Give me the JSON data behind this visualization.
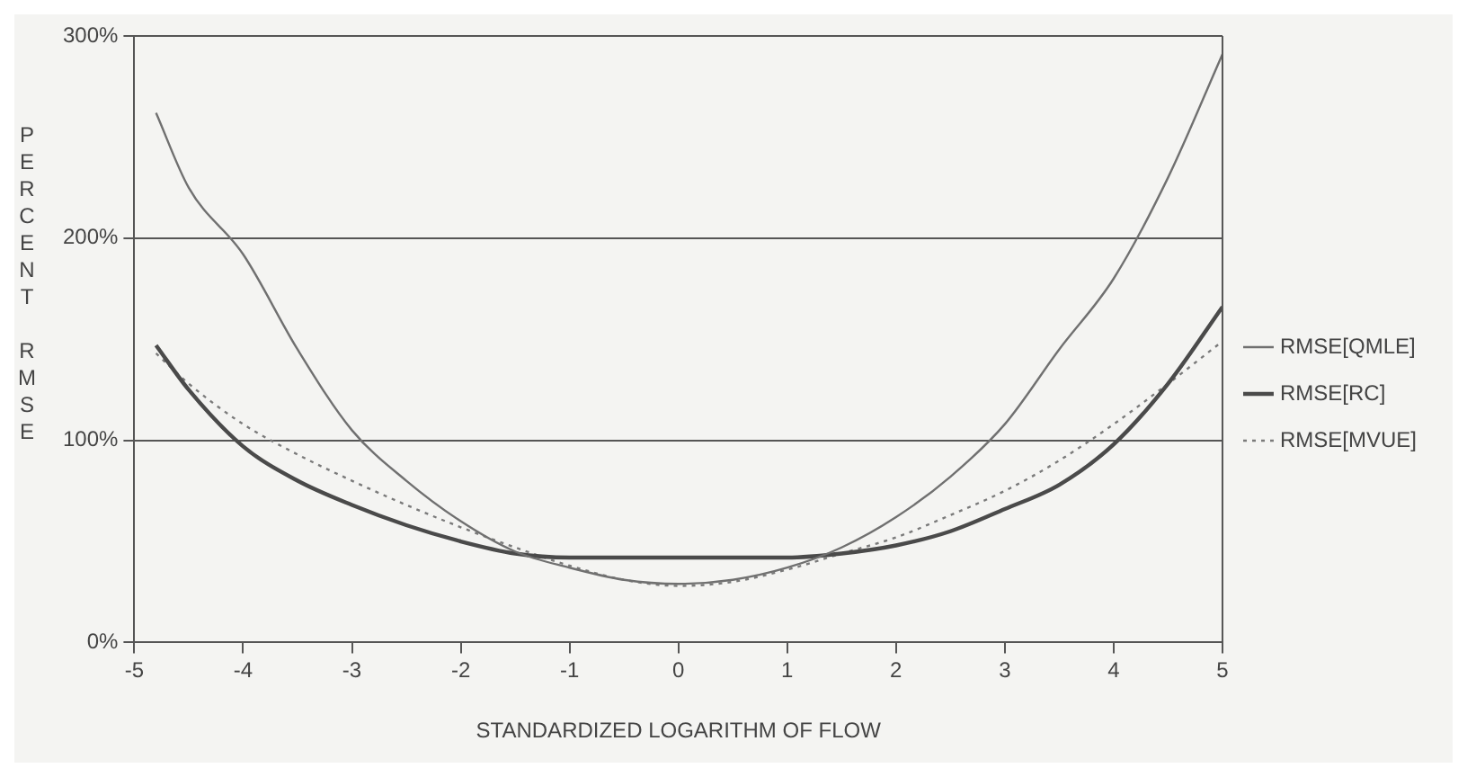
{
  "chart_data": {
    "type": "line",
    "xlabel": "STANDARDIZED LOGARITHM OF FLOW",
    "ylabel": "PERCENT RMSE",
    "x": [
      -4.8,
      -4.5,
      -4,
      -3.5,
      -3,
      -2.5,
      -2,
      -1.5,
      -1,
      -0.5,
      0,
      0.5,
      1,
      1.5,
      2,
      2.5,
      3,
      3.5,
      4,
      4.5,
      5
    ],
    "series": [
      {
        "name": "RMSE[QMLE]",
        "color": "#707070",
        "line_style": "solid",
        "values": [
          262,
          225,
          192,
          145,
          105,
          80,
          60,
          45,
          37,
          31,
          29,
          31,
          37,
          47,
          62,
          82,
          108,
          145,
          180,
          230,
          291
        ]
      },
      {
        "name": "RMSE[RC]",
        "color": "#4a4a4a",
        "line_style": "solid",
        "values": [
          147,
          125,
          97,
          80,
          68,
          58,
          50,
          44,
          42,
          42,
          42,
          42,
          42,
          44,
          48,
          55,
          66,
          78,
          98,
          128,
          166
        ]
      },
      {
        "name": "RMSE[MVUE]",
        "color": "#7a7a7a",
        "line_style": "dotted",
        "values": [
          143,
          128,
          108,
          93,
          80,
          68,
          57,
          47,
          38,
          31,
          28,
          30,
          36,
          44,
          52,
          63,
          75,
          90,
          108,
          128,
          149
        ]
      }
    ],
    "xlim": [
      -5,
      5
    ],
    "xticks": [
      -5,
      -4,
      -3,
      -2,
      -1,
      0,
      1,
      2,
      3,
      4,
      5
    ],
    "ylim": [
      0,
      300
    ],
    "yticks": [
      {
        "value": 0,
        "label": "0%"
      },
      {
        "value": 100,
        "label": "100%"
      },
      {
        "value": 200,
        "label": "200%"
      },
      {
        "value": 300,
        "label": "300%"
      }
    ],
    "grid": "y",
    "legend": "right",
    "marker": "none"
  }
}
